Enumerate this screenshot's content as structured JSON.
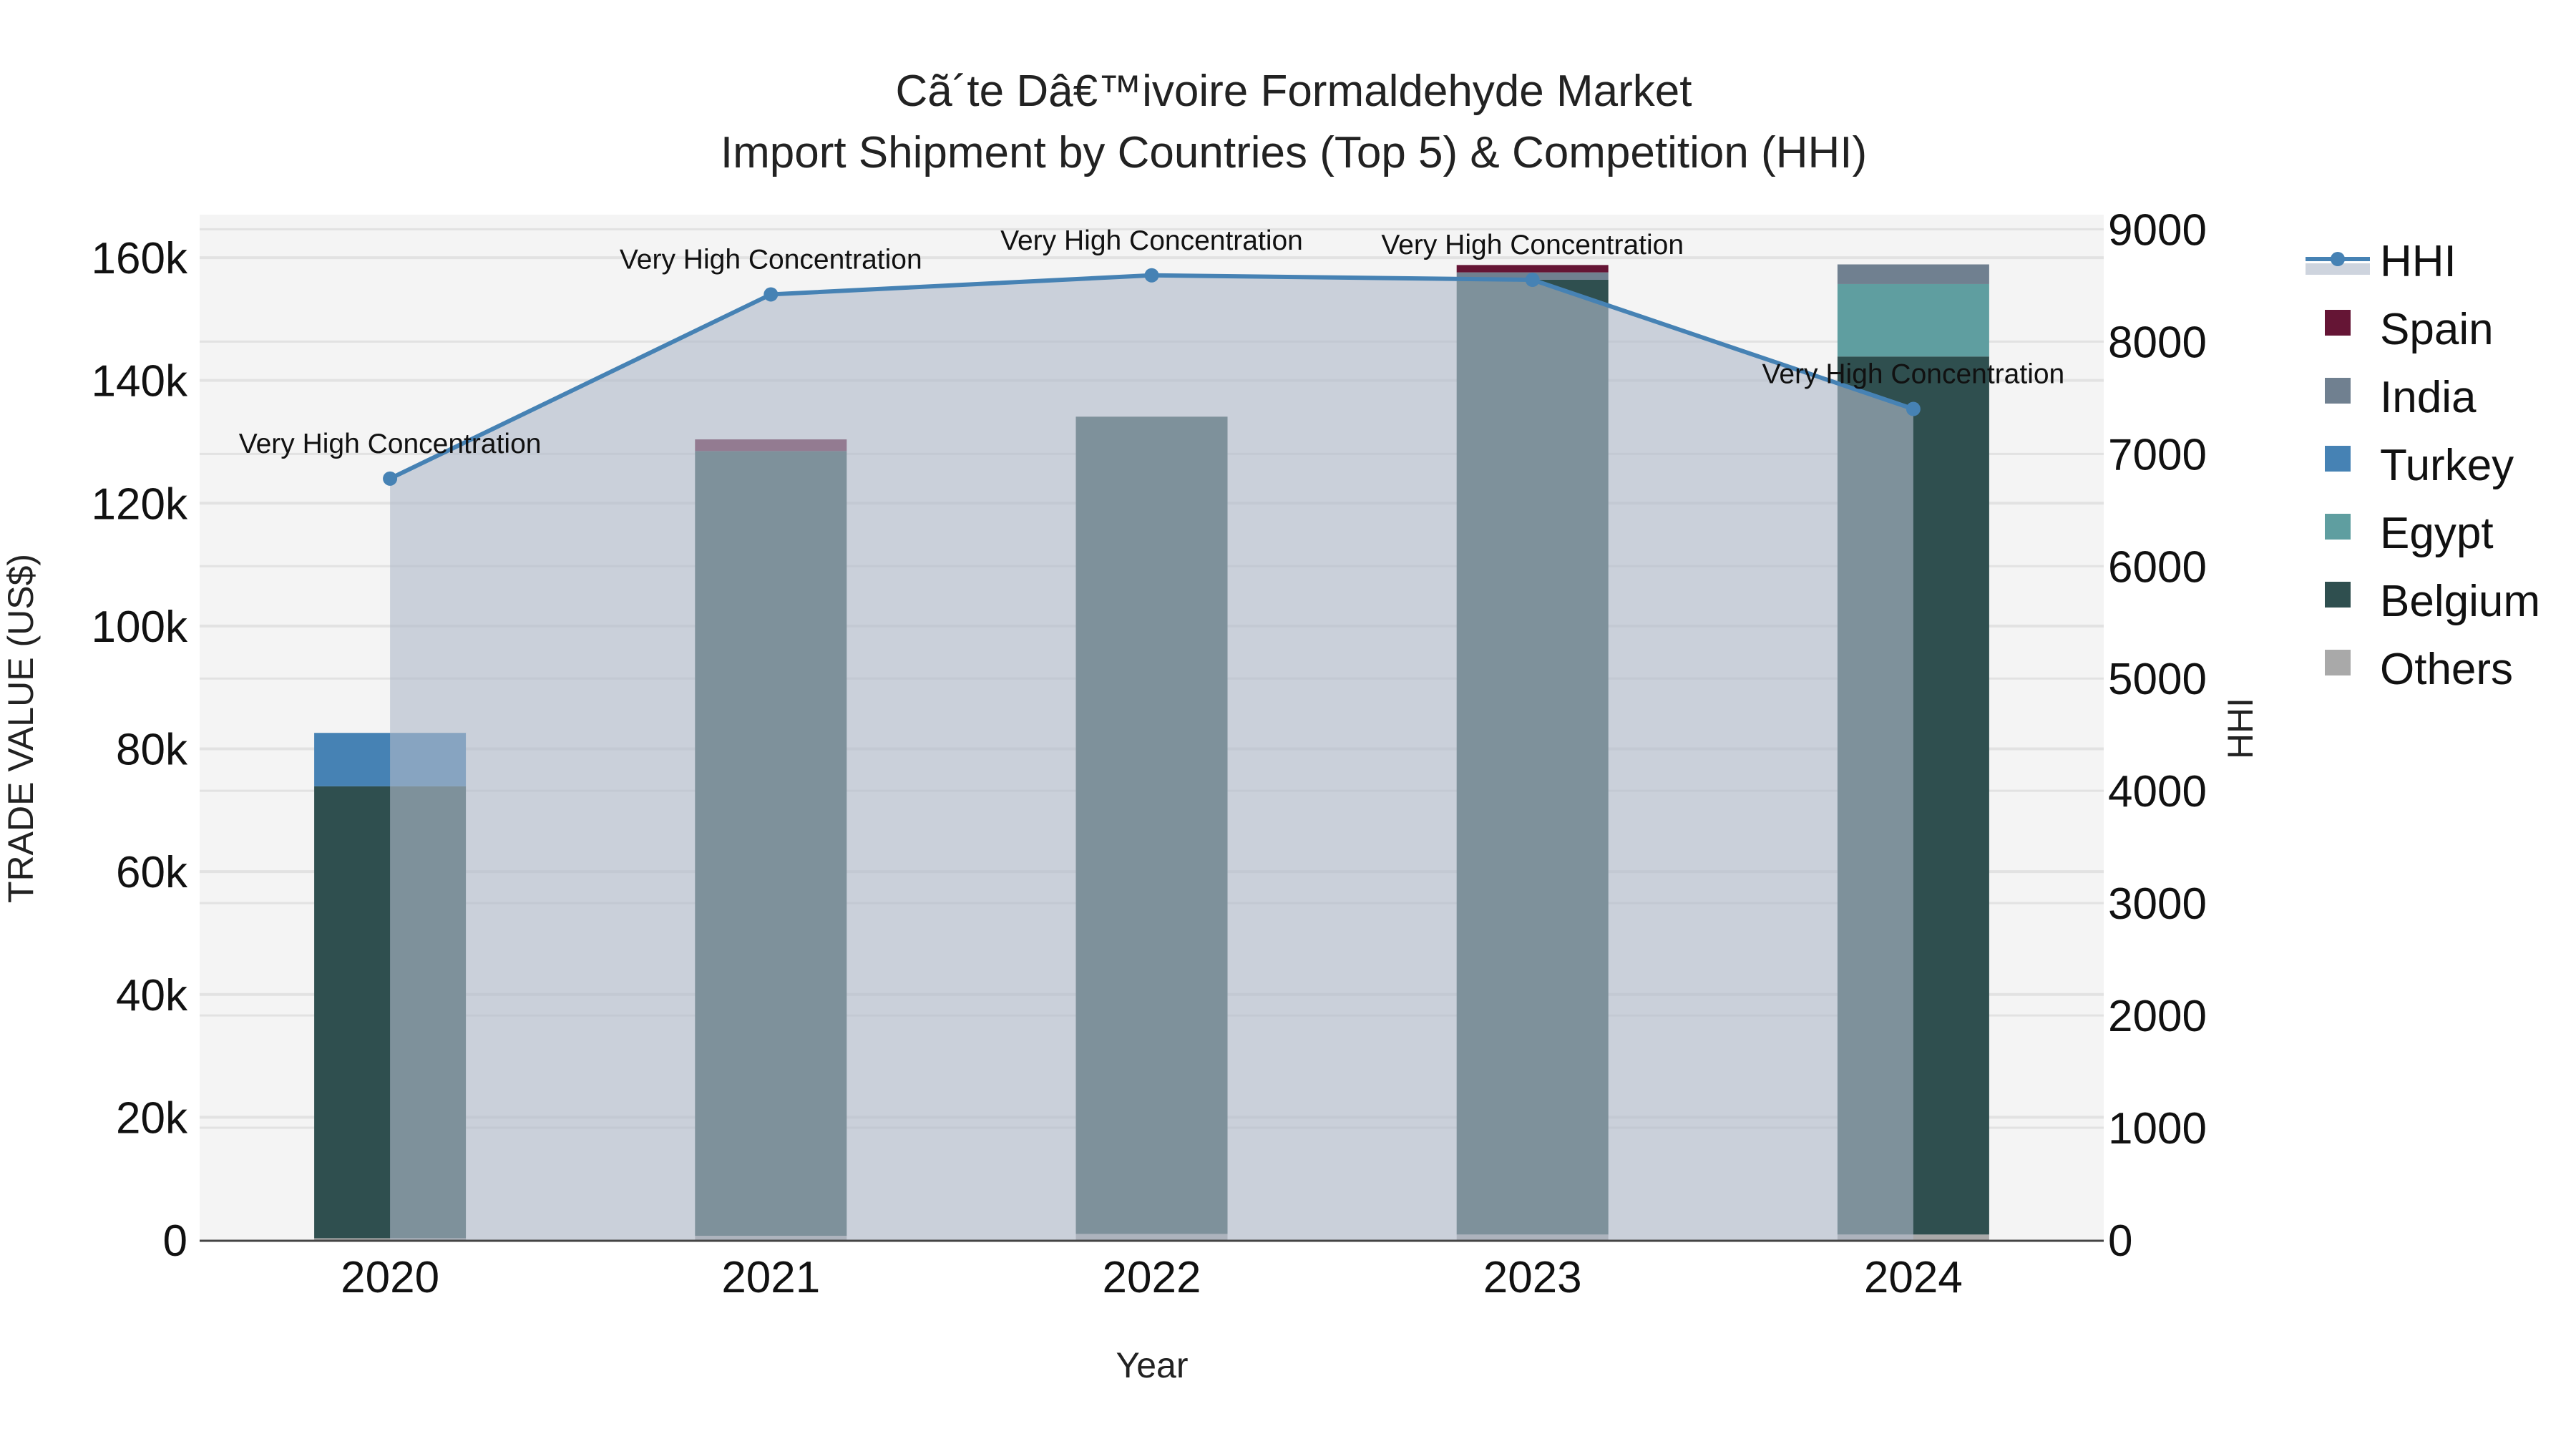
{
  "chart_title": {
    "line1": "Cã´te Dâ€™ivoire Formaldehyde Market",
    "line2": "Import Shipment by Countries (Top 5) & Competition (HHI)"
  },
  "axes": {
    "x_title": "Year",
    "y_left_title": "TRADE VALUE (US$)",
    "y_right_title": "HHI",
    "y_left_ticks": [
      "0",
      "20k",
      "40k",
      "60k",
      "80k",
      "100k",
      "120k",
      "140k",
      "160k"
    ],
    "y_right_ticks": [
      "0",
      "1000",
      "2000",
      "3000",
      "4000",
      "5000",
      "6000",
      "7000",
      "8000",
      "9000"
    ]
  },
  "legend": [
    {
      "label": "HHI",
      "type": "line",
      "color": "#4682B4"
    },
    {
      "label": "Spain",
      "type": "bar",
      "color": "#651535"
    },
    {
      "label": "India",
      "type": "bar",
      "color": "#708090"
    },
    {
      "label": "Turkey",
      "type": "bar",
      "color": "#4682B4"
    },
    {
      "label": "Egypt",
      "type": "bar",
      "color": "#5F9EA0"
    },
    {
      "label": "Belgium",
      "type": "bar",
      "color": "#2F4F4F"
    },
    {
      "label": "Others",
      "type": "bar",
      "color": "#A9A9A9"
    }
  ],
  "colors": {
    "plot_bg": "#F4F4F4",
    "grid": "#E2E2E2",
    "hhi_line": "#4682B4",
    "hhi_fill": "rgba(176,186,202,0.62)"
  },
  "chart_data": {
    "type": "bar",
    "subtype": "stacked bar + line (dual axis)",
    "title": "Cã´te Dâ€™ivoire Formaldehyde Market — Import Shipment by Countries (Top 5) & Competition (HHI)",
    "xlabel": "Year",
    "ylabel": "TRADE VALUE (US$)",
    "y2label": "HHI",
    "ylim": [
      0,
      167000
    ],
    "y2lim": [
      0,
      9130
    ],
    "grid": true,
    "legend_position": "right",
    "categories": [
      "2020",
      "2021",
      "2022",
      "2023",
      "2024"
    ],
    "stack_order_bottom_to_top": [
      "Others",
      "Belgium",
      "Egypt",
      "Turkey",
      "India",
      "Spain"
    ],
    "series": [
      {
        "name": "Others",
        "color": "#A9A9A9",
        "values": [
          300,
          700,
          1000,
          900,
          900
        ]
      },
      {
        "name": "Belgium",
        "color": "#2F4F4F",
        "values": [
          73600,
          127800,
          133100,
          155500,
          143000
        ]
      },
      {
        "name": "Egypt",
        "color": "#5F9EA0",
        "values": [
          0,
          0,
          0,
          0,
          11800
        ]
      },
      {
        "name": "Turkey",
        "color": "#4682B4",
        "values": [
          8700,
          0,
          0,
          0,
          0
        ]
      },
      {
        "name": "India",
        "color": "#708090",
        "values": [
          0,
          0,
          0,
          1200,
          3200
        ]
      },
      {
        "name": "Spain",
        "color": "#651535",
        "values": [
          0,
          1900,
          0,
          1200,
          0
        ]
      }
    ],
    "line_series": {
      "name": "HHI",
      "axis": "right",
      "color": "#4682B4",
      "values": [
        6780,
        8420,
        8590,
        8550,
        7400
      ],
      "annotations": [
        "Very High Concentration",
        "Very High Concentration",
        "Very High Concentration",
        "Very High Concentration",
        "Very High Concentration"
      ]
    }
  }
}
